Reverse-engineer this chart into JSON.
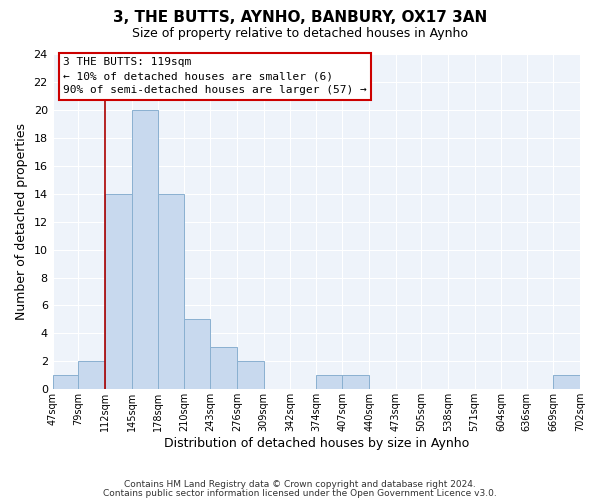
{
  "title": "3, THE BUTTS, AYNHO, BANBURY, OX17 3AN",
  "subtitle": "Size of property relative to detached houses in Aynho",
  "xlabel": "Distribution of detached houses by size in Aynho",
  "ylabel": "Number of detached properties",
  "bar_color": "#c8d9ee",
  "bar_edge_color": "#8ab0d0",
  "background_color": "#ffffff",
  "plot_bg_color": "#eef3fa",
  "grid_color": "#ffffff",
  "bin_edges": [
    47,
    79,
    112,
    145,
    178,
    210,
    243,
    276,
    309,
    342,
    374,
    407,
    440,
    473,
    505,
    538,
    571,
    604,
    636,
    669,
    702
  ],
  "bin_labels": [
    "47sqm",
    "79sqm",
    "112sqm",
    "145sqm",
    "178sqm",
    "210sqm",
    "243sqm",
    "276sqm",
    "309sqm",
    "342sqm",
    "374sqm",
    "407sqm",
    "440sqm",
    "473sqm",
    "505sqm",
    "538sqm",
    "571sqm",
    "604sqm",
    "636sqm",
    "669sqm",
    "702sqm"
  ],
  "counts": [
    1,
    2,
    14,
    20,
    14,
    5,
    3,
    2,
    0,
    0,
    1,
    1,
    0,
    0,
    0,
    0,
    0,
    0,
    0,
    1
  ],
  "vline_x": 112,
  "vline_color": "#aa0000",
  "ylim": [
    0,
    24
  ],
  "yticks": [
    0,
    2,
    4,
    6,
    8,
    10,
    12,
    14,
    16,
    18,
    20,
    22,
    24
  ],
  "annotation_title": "3 THE BUTTS: 119sqm",
  "annotation_line1": "← 10% of detached houses are smaller (6)",
  "annotation_line2": "90% of semi-detached houses are larger (57) →",
  "footer1": "Contains HM Land Registry data © Crown copyright and database right 2024.",
  "footer2": "Contains public sector information licensed under the Open Government Licence v3.0."
}
